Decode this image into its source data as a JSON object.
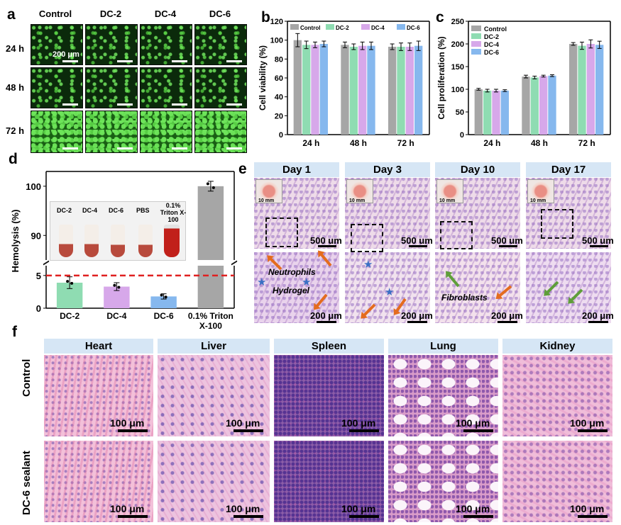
{
  "panel_labels": {
    "a": "a",
    "b": "b",
    "c": "c",
    "d": "d",
    "e": "e",
    "f": "f"
  },
  "panel_a": {
    "columns": [
      "Control",
      "DC-2",
      "DC-4",
      "DC-6"
    ],
    "rows": [
      "24 h",
      "48 h",
      "72 h"
    ],
    "scale_label": "200 μm"
  },
  "chart_data": [
    {
      "panel": "b",
      "type": "bar",
      "categories": [
        "24 h",
        "48 h",
        "72 h"
      ],
      "ylabel": "Cell viability (%)",
      "ylim": [
        0,
        120
      ],
      "yticks": [
        0,
        20,
        40,
        60,
        80,
        100,
        120
      ],
      "legend_position": "top",
      "series": [
        {
          "name": "Control",
          "color": "#a6a6a6",
          "values": [
            100,
            95,
            93
          ],
          "errors": [
            7,
            3,
            3
          ]
        },
        {
          "name": "DC-2",
          "color": "#8fdcb2",
          "values": [
            95,
            93,
            93
          ],
          "errors": [
            4,
            3,
            4
          ]
        },
        {
          "name": "DC-4",
          "color": "#d7a8ea",
          "values": [
            95,
            94,
            93
          ],
          "errors": [
            3,
            4,
            4
          ]
        },
        {
          "name": "DC-6",
          "color": "#86b8ee",
          "values": [
            96,
            94,
            94
          ],
          "errors": [
            3,
            4,
            5
          ]
        }
      ]
    },
    {
      "panel": "c",
      "type": "bar",
      "categories": [
        "24 h",
        "48 h",
        "72 h"
      ],
      "ylabel": "Cell proliferation (%)",
      "ylim": [
        0,
        250
      ],
      "yticks": [
        0,
        50,
        100,
        150,
        200,
        250
      ],
      "legend_position": "top-left",
      "series": [
        {
          "name": "Control",
          "color": "#a6a6a6",
          "values": [
            100,
            128,
            200
          ],
          "errors": [
            2,
            3,
            3
          ]
        },
        {
          "name": "DC-2",
          "color": "#8fdcb2",
          "values": [
            97,
            126,
            196
          ],
          "errors": [
            3,
            3,
            8
          ]
        },
        {
          "name": "DC-4",
          "color": "#d7a8ea",
          "values": [
            97,
            129,
            200
          ],
          "errors": [
            3,
            2,
            9
          ]
        },
        {
          "name": "DC-6",
          "color": "#86b8ee",
          "values": [
            97,
            130,
            198
          ],
          "errors": [
            2,
            2,
            8
          ]
        }
      ]
    },
    {
      "panel": "d",
      "type": "bar",
      "categories": [
        "DC-2",
        "DC-4",
        "DC-6",
        "0.1% Triton X-100"
      ],
      "values": [
        3.9,
        3.3,
        1.8,
        100
      ],
      "errors": [
        0.9,
        0.6,
        0.4,
        1
      ],
      "colors": [
        "#8fdcb2",
        "#d7a8ea",
        "#86b8ee",
        "#a6a6a6"
      ],
      "ylabel": "Hemolysis (%)",
      "yticks_lower": [
        0,
        5
      ],
      "yticks_upper": [
        90,
        100
      ],
      "threshold": 5,
      "axis_break": true
    }
  ],
  "panel_d_inset": {
    "tubes": [
      "DC-2",
      "DC-4",
      "DC-6",
      "PBS",
      "0.1% Triton X-100"
    ]
  },
  "panel_e": {
    "days": [
      "Day 1",
      "Day 3",
      "Day 10",
      "Day 17"
    ],
    "top_scale": "500 um",
    "bottom_scale": "200 μm",
    "inset_scale": "10 mm",
    "annotations": {
      "neutrophils": "Neutrophils",
      "hydrogel": "Hydrogel",
      "fibroblasts": "Fibroblasts"
    }
  },
  "panel_f": {
    "organs": [
      "Heart",
      "Liver",
      "Spleen",
      "Lung",
      "Kidney"
    ],
    "rows": [
      "Control",
      "DC-6 sealant"
    ],
    "scale_label": "100 μm"
  }
}
